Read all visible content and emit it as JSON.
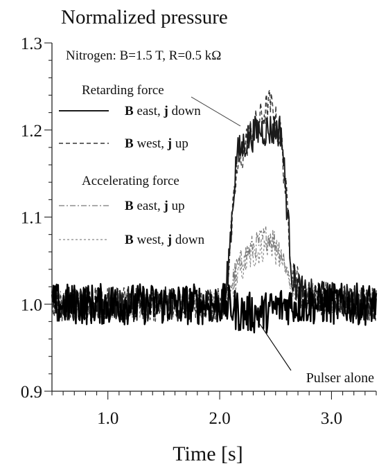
{
  "chart_data": {
    "type": "line",
    "title": "Normalized pressure",
    "subtitle": "Nitrogen: B=1.5 T, R=0.5 kΩ",
    "xlabel": "Time [s]",
    "ylabel": "",
    "xlim": [
      0.5,
      3.4
    ],
    "ylim": [
      0.9,
      1.3
    ],
    "x_ticks": [
      1.0,
      2.0,
      3.0
    ],
    "x_tick_labels": [
      "1.0",
      "2.0",
      "3.0"
    ],
    "y_ticks": [
      0.9,
      1.0,
      1.1,
      1.2,
      1.3
    ],
    "y_tick_labels": [
      "0.9",
      "1.0",
      "1.1",
      "1.2",
      "1.3"
    ],
    "grid": false,
    "legend_position": "top-left",
    "legend_groups": [
      {
        "heading": "Retarding force",
        "series_indices": [
          0,
          1
        ]
      },
      {
        "heading": "Accelerating force",
        "series_indices": [
          2,
          3
        ]
      }
    ],
    "series": [
      {
        "name": "B east, j down",
        "name_bold": "B",
        "name_parts": [
          "B",
          " east, ",
          "j",
          " down"
        ],
        "style": "solid",
        "color": "#1a1a1a",
        "x": [
          0.5,
          2.05,
          2.15,
          2.25,
          2.35,
          2.45,
          2.55,
          2.65,
          2.75,
          3.4
        ],
        "y": [
          1.0,
          1.0,
          1.17,
          1.19,
          1.2,
          1.2,
          1.2,
          1.03,
          1.01,
          1.0
        ]
      },
      {
        "name": "B west, j up",
        "name_bold": "B",
        "name_parts": [
          "B",
          " west, ",
          "j",
          " up"
        ],
        "style": "dashed",
        "color": "#333333",
        "x": [
          0.5,
          2.05,
          2.15,
          2.25,
          2.35,
          2.45,
          2.55,
          2.65,
          2.75,
          3.4
        ],
        "y": [
          1.0,
          1.0,
          1.15,
          1.19,
          1.21,
          1.23,
          1.19,
          1.04,
          1.01,
          1.0
        ]
      },
      {
        "name": "B east, j up",
        "name_bold": "B",
        "name_parts": [
          "B",
          " east, ",
          "j",
          " up"
        ],
        "style": "dashdot",
        "color": "#777777",
        "x": [
          0.5,
          2.05,
          2.15,
          2.25,
          2.35,
          2.45,
          2.55,
          2.65,
          2.75,
          3.4
        ],
        "y": [
          1.0,
          1.0,
          1.04,
          1.06,
          1.07,
          1.08,
          1.06,
          1.02,
          1.01,
          1.0
        ]
      },
      {
        "name": "B west, j down",
        "name_bold": "B",
        "name_parts": [
          "B",
          " west, ",
          "j",
          " down"
        ],
        "style": "dotted",
        "color": "#888888",
        "x": [
          0.5,
          2.05,
          2.15,
          2.25,
          2.35,
          2.45,
          2.55,
          2.65,
          2.75,
          3.4
        ],
        "y": [
          1.0,
          1.0,
          1.03,
          1.05,
          1.06,
          1.07,
          1.05,
          1.02,
          1.01,
          1.0
        ]
      },
      {
        "name": "Pulser alone",
        "style": "solid-bold",
        "color": "#000000",
        "x": [
          0.5,
          2.05,
          2.2,
          2.4,
          2.6,
          2.8,
          3.0,
          3.4
        ],
        "y": [
          1.0,
          1.0,
          0.99,
          0.99,
          1.0,
          1.0,
          1.0,
          1.0
        ]
      }
    ],
    "annotations": [
      {
        "text": "Pulser alone",
        "target_series": 4,
        "at": [
          2.45,
          0.975
        ]
      },
      {
        "text": "",
        "from_legend": "Retarding force",
        "target_series": 0,
        "at": [
          2.25,
          1.21
        ]
      }
    ]
  }
}
